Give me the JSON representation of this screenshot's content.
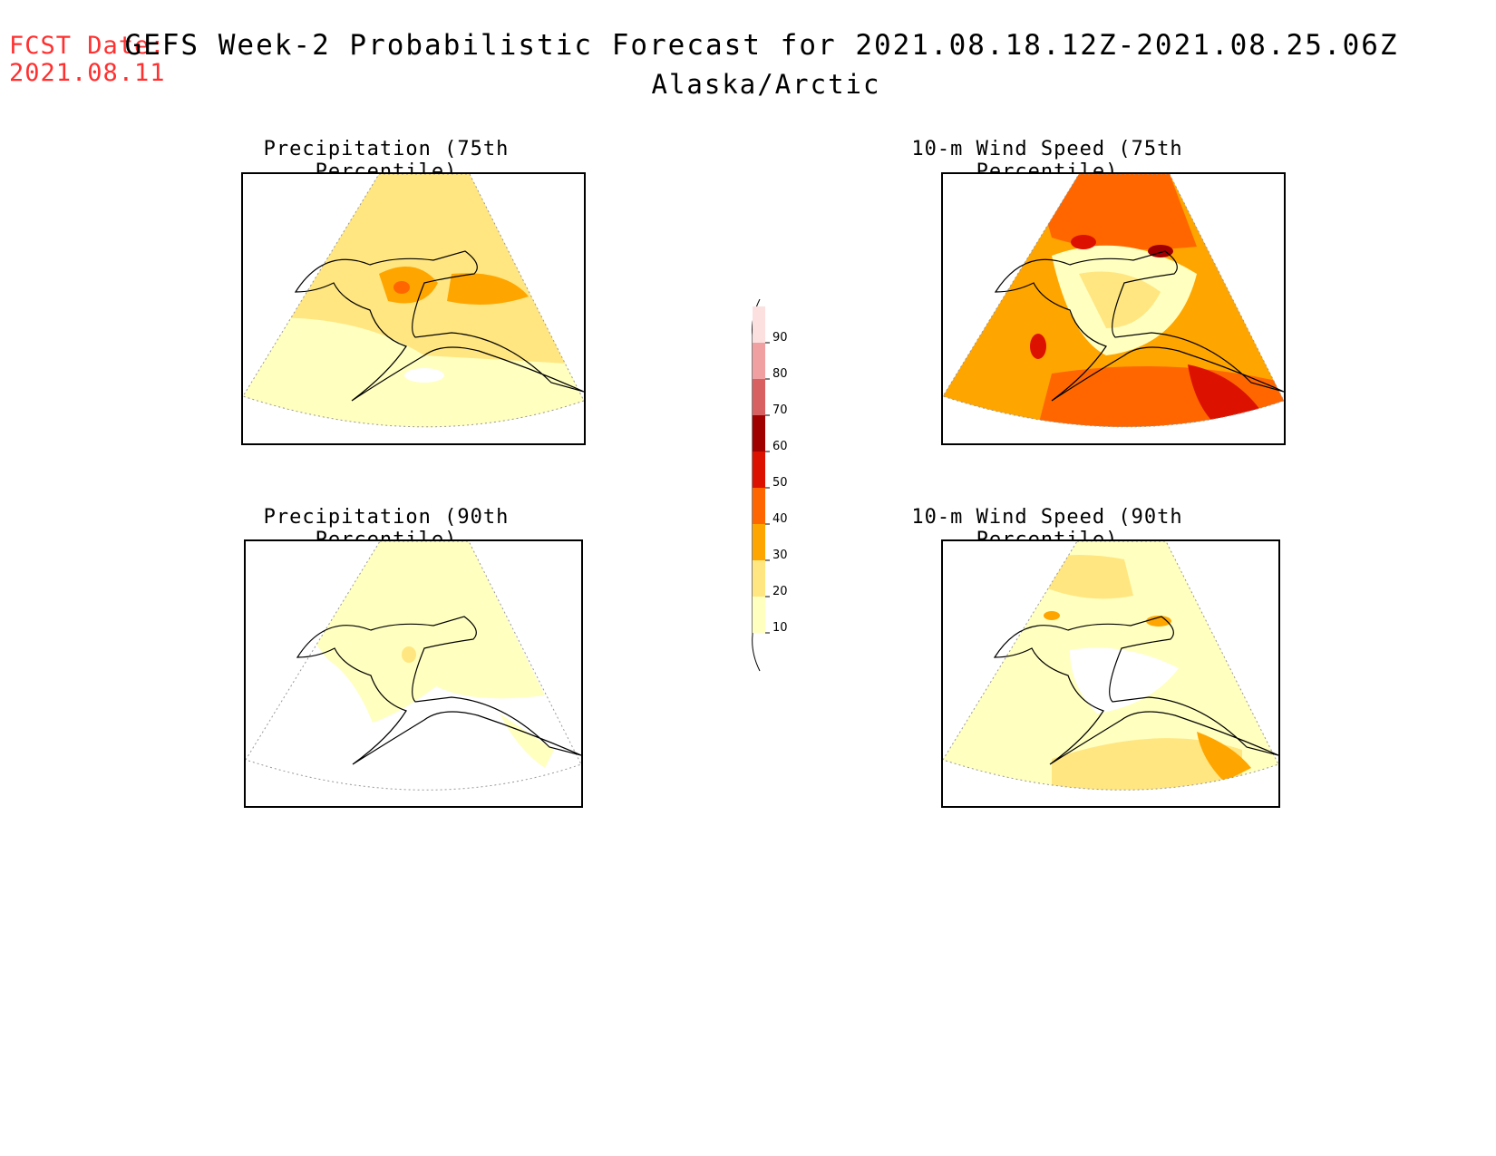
{
  "header": {
    "fcst_line1": "FCST Date:",
    "fcst_line2": "2021.08.11",
    "title": "GEFS Week-2 Probabilistic Forecast for 2021.08.18.12Z-2021.08.25.06Z",
    "region": "Alaska/Arctic"
  },
  "panels": {
    "precip75": {
      "title": "Precipitation (75th Percentile)"
    },
    "wind75": {
      "title": "10-m Wind Speed (75th Percentile)"
    },
    "precip90": {
      "title": "Precipitation (90th Percentile)"
    },
    "wind90": {
      "title": "10-m Wind Speed (90th Percentile)"
    }
  },
  "colorbar": {
    "levels": [
      "10",
      "20",
      "30",
      "40",
      "50",
      "60",
      "70",
      "80",
      "90"
    ],
    "colors": [
      "#ffffc0",
      "#ffe680",
      "#ffa500",
      "#ff6600",
      "#dd1100",
      "#a00000",
      "#d96060",
      "#f0a0a0",
      "#fce0e0"
    ]
  }
}
